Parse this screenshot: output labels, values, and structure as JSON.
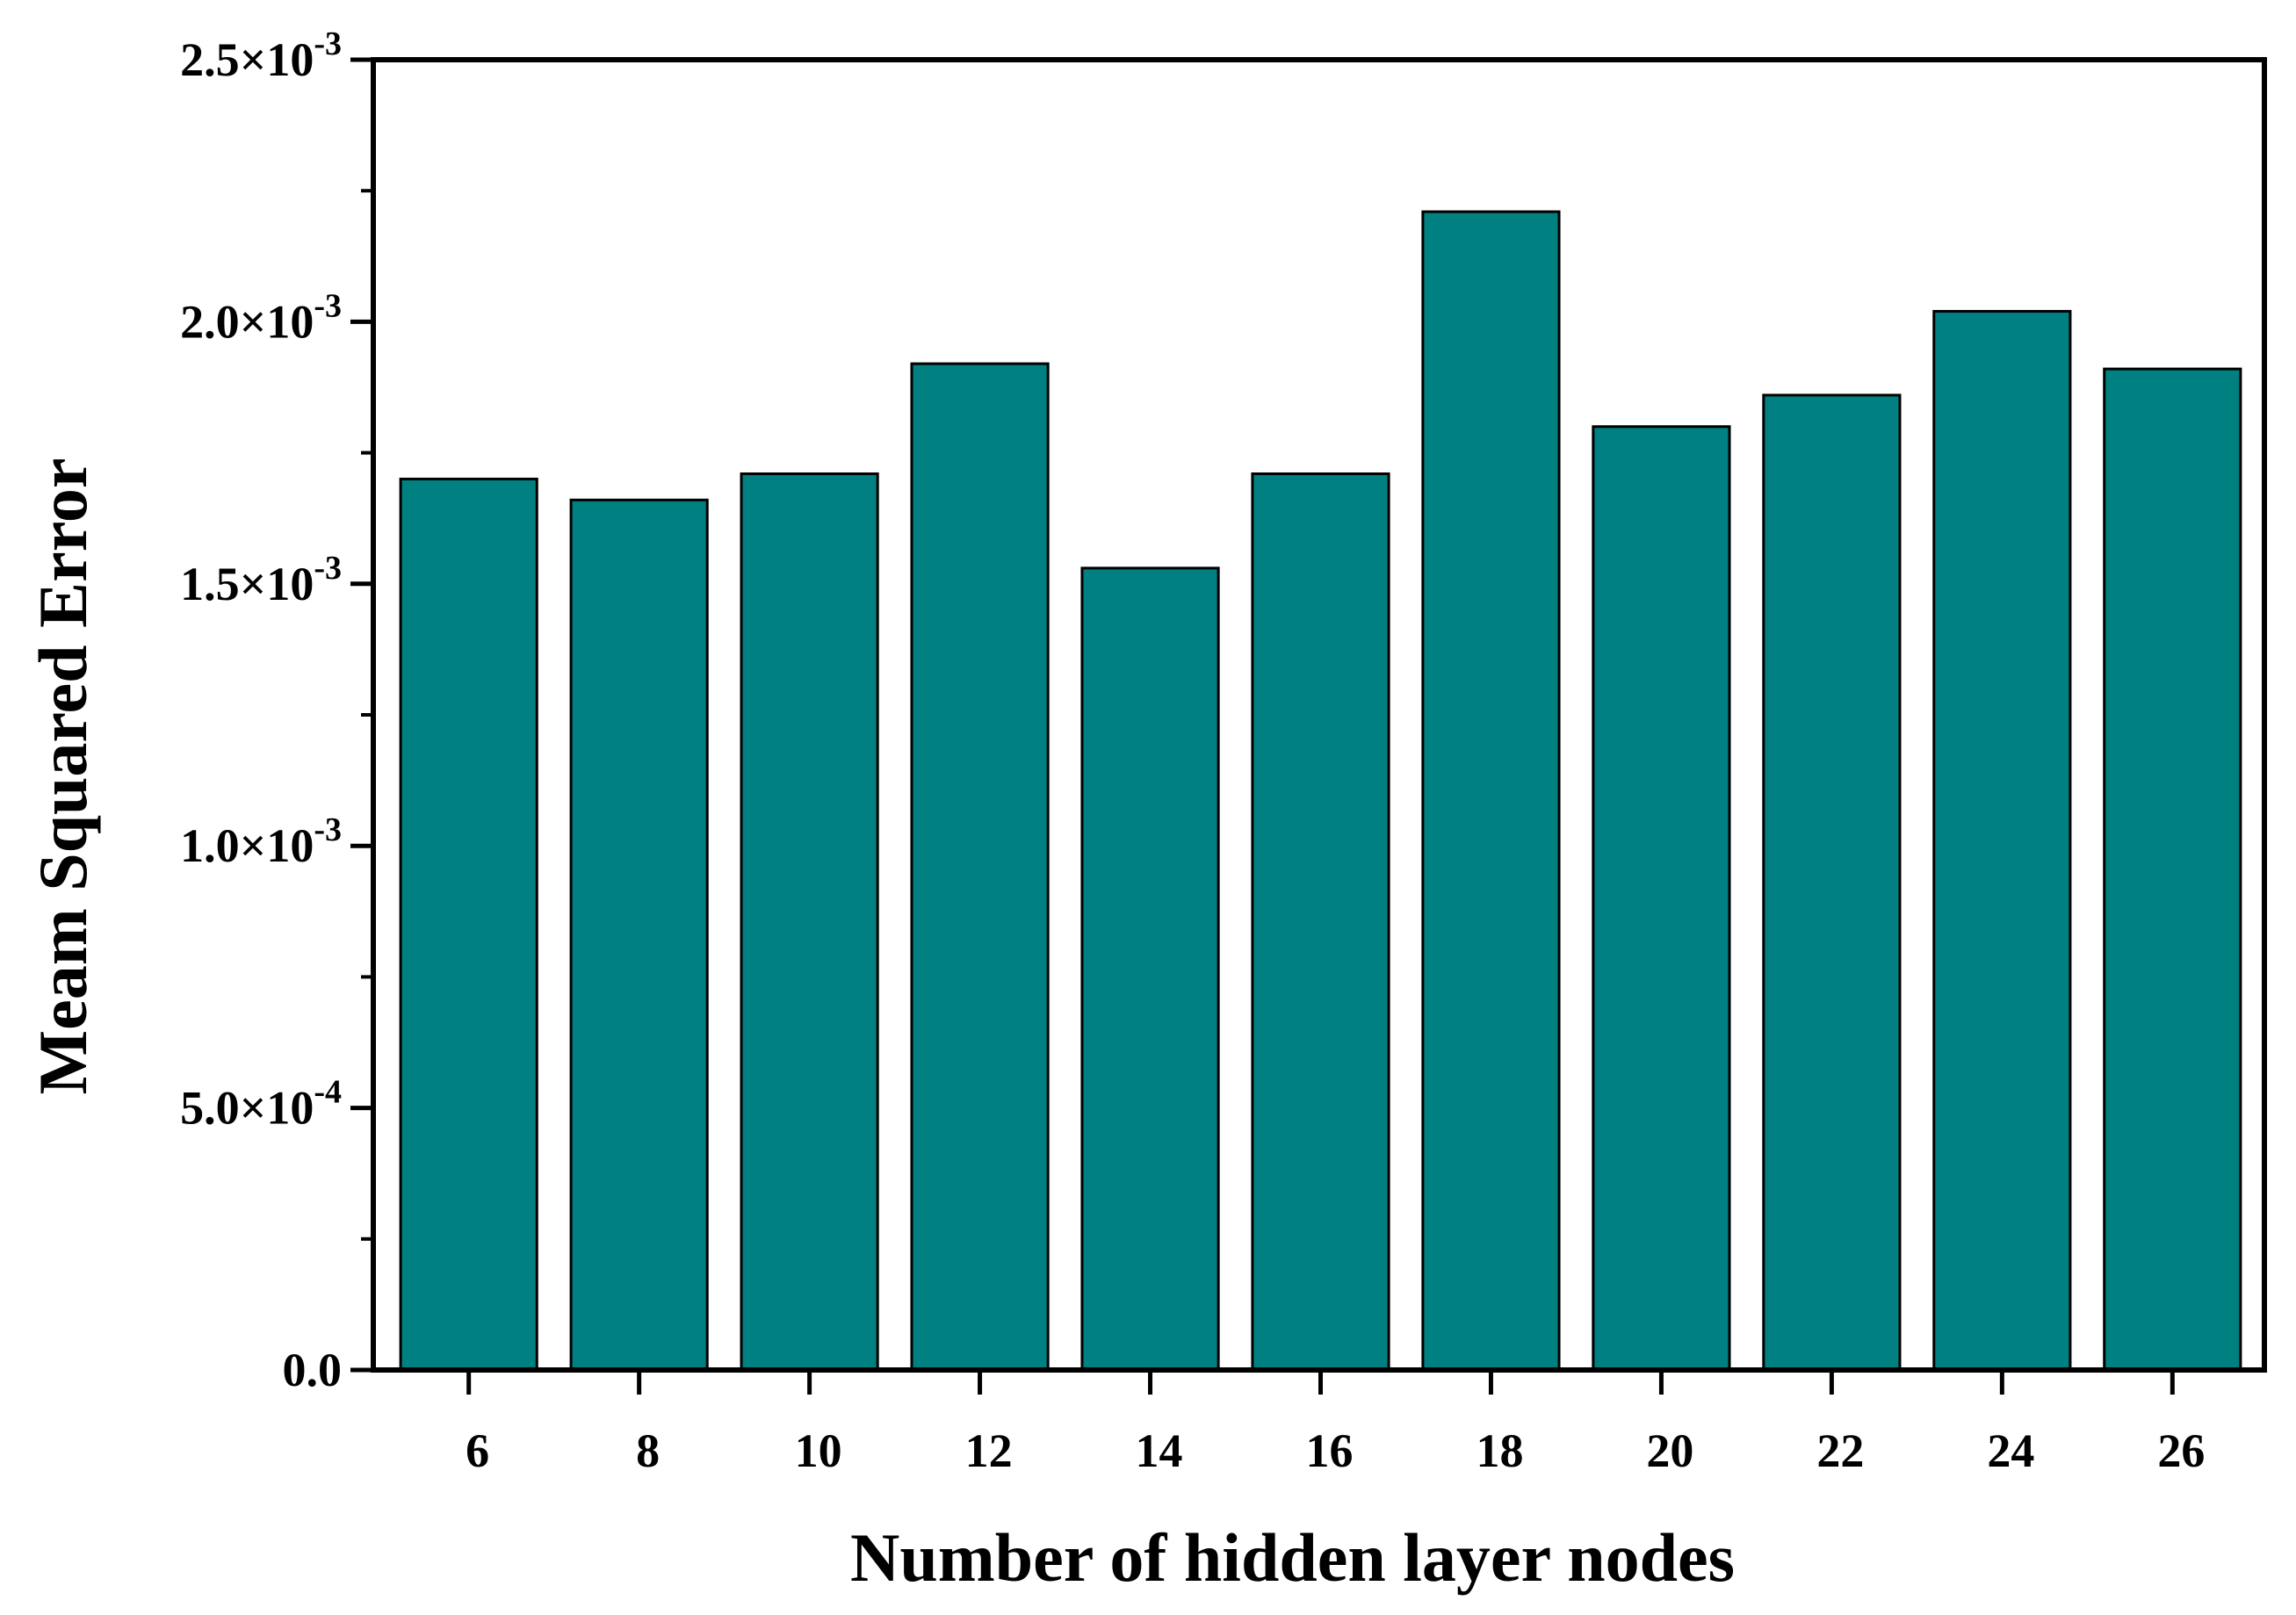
{
  "chart_data": {
    "type": "bar",
    "categories": [
      "6",
      "8",
      "10",
      "12",
      "14",
      "16",
      "18",
      "20",
      "22",
      "24",
      "26"
    ],
    "values": [
      0.0017,
      0.00166,
      0.00171,
      0.00192,
      0.00153,
      0.00171,
      0.00221,
      0.0018,
      0.00186,
      0.00202,
      0.00191
    ],
    "title": "",
    "xlabel": "Number of hidden layer nodes",
    "ylabel": "Meam Squared Error",
    "ylim": [
      0,
      0.0025
    ],
    "yticks": [
      {
        "value": 0,
        "mantissa": "0.0",
        "exponent": ""
      },
      {
        "value": 0.0005,
        "mantissa": "5.0×10",
        "exponent": "-4"
      },
      {
        "value": 0.001,
        "mantissa": "1.0×10",
        "exponent": "-3"
      },
      {
        "value": 0.0015,
        "mantissa": "1.5×10",
        "exponent": "-3"
      },
      {
        "value": 0.002,
        "mantissa": "2.0×10",
        "exponent": "-3"
      },
      {
        "value": 0.0025,
        "mantissa": "2.5×10",
        "exponent": "-3"
      }
    ],
    "bar_color": "#008080",
    "grid": false,
    "legend": "none"
  }
}
